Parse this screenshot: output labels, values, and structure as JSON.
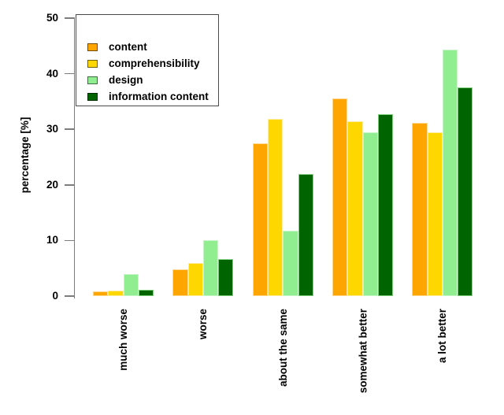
{
  "figure": {
    "background": "#ffffff",
    "axis_color": "#7c7c7c",
    "text_color": "#000000",
    "legend_border_color": "#4a4a4a"
  },
  "chart_data": {
    "type": "bar",
    "title": "",
    "xlabel": "",
    "ylabel": "percentage [%]",
    "ylim": [
      0,
      50
    ],
    "yticks": [
      0,
      10,
      20,
      30,
      40,
      50
    ],
    "ytick_labels": [
      "0",
      "10",
      "20",
      "30",
      "40",
      "50"
    ],
    "grid": false,
    "legend_position": "top-left",
    "x_labels_rotated": true,
    "categories": [
      "much worse",
      "worse",
      "about the same",
      "somewhat better",
      "a lot better"
    ],
    "series": [
      {
        "name": "content",
        "color": "#FFA500",
        "border_color": "#FFD990",
        "values": [
          0.8,
          4.8,
          27.5,
          35.6,
          31.1
        ]
      },
      {
        "name": "comprehensibility",
        "color": "#FFD700",
        "border_color": "#FFEC9E",
        "values": [
          1.0,
          6.0,
          31.9,
          31.5,
          29.5
        ]
      },
      {
        "name": "design",
        "color": "#90EE90",
        "border_color": "#C9F6C9",
        "values": [
          4.0,
          10.1,
          11.8,
          29.4,
          44.3
        ]
      },
      {
        "name": "information content",
        "color": "#006400",
        "border_color": "#7FCF7F",
        "values": [
          1.1,
          6.6,
          22.0,
          32.7,
          37.6
        ]
      }
    ]
  }
}
